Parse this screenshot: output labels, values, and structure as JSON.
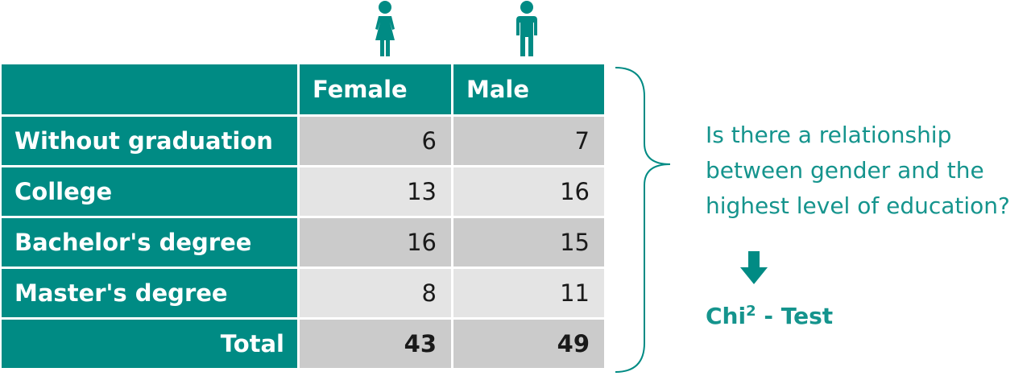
{
  "colors": {
    "teal": "#008b84",
    "text_teal": "#15948d",
    "cell_dark": "#cbcbcb",
    "cell_light": "#e4e4e4"
  },
  "icons": {
    "female": "female-person-icon",
    "male": "male-person-icon",
    "arrow": "arrow-down-icon",
    "brace": "right-curly-brace"
  },
  "table": {
    "headers": [
      "",
      "Female",
      "Male"
    ],
    "rows": [
      {
        "label": "Without graduation",
        "female": "6",
        "male": "7"
      },
      {
        "label": "College",
        "female": "13",
        "male": "16"
      },
      {
        "label": "Bachelor's degree",
        "female": "16",
        "male": "15"
      },
      {
        "label": "Master's degree",
        "female": "8",
        "male": "11"
      }
    ],
    "total": {
      "label": "Total",
      "female": "43",
      "male": "49"
    }
  },
  "question": {
    "lines": [
      "Is there a relationship",
      "between gender and the",
      "highest level of education?"
    ]
  },
  "test": {
    "prefix": "Chi",
    "superscript": "2",
    "suffix": " - Test"
  }
}
